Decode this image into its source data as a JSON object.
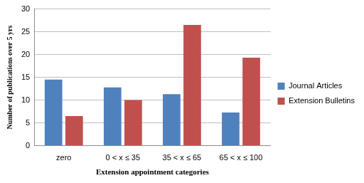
{
  "chart_data": {
    "type": "bar",
    "x_label": "Extension appointment categories",
    "y_label": "Number of publications over 5 yrs",
    "categories": [
      "zero",
      "0 < x ≤ 35",
      "35 < x ≤ 65",
      "65 < x ≤ 100"
    ],
    "series": [
      {
        "name": "Journal Articles",
        "color": "#4f81bd",
        "values": [
          14.5,
          12.8,
          11.3,
          7.3
        ]
      },
      {
        "name": "Extension Bulletins",
        "color": "#c0504d",
        "values": [
          6.5,
          10,
          26.5,
          19.3
        ]
      }
    ],
    "ylim": [
      0,
      30
    ],
    "yticks": [
      0,
      5,
      10,
      15,
      20,
      25,
      30
    ],
    "grid": true,
    "legend": "right"
  }
}
